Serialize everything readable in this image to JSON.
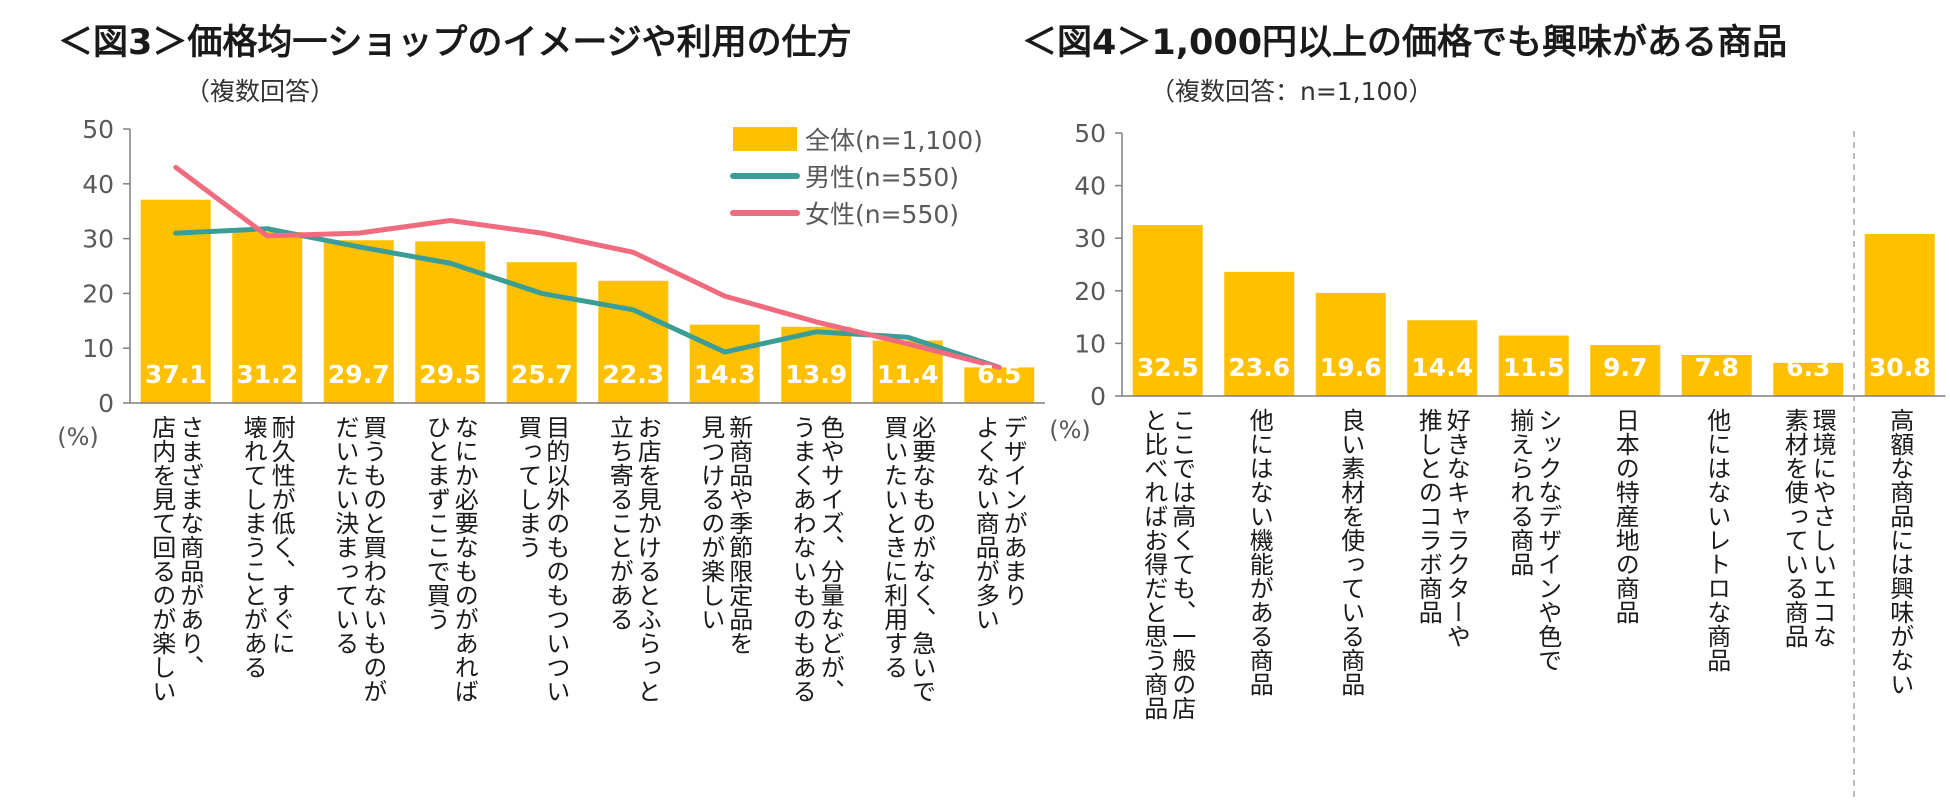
{
  "chart_data": [
    {
      "type": "bar",
      "title": "＜図3＞価格均一ショップのイメージや利用の仕方",
      "subtitle": "（複数回答）",
      "unit_label": "(%)",
      "ylim": [
        0,
        50
      ],
      "yticks": [
        0,
        10,
        20,
        30,
        40,
        50
      ],
      "categories": [
        [
          "さまざまな商品があり、",
          "店内を見て回るのが楽しい"
        ],
        [
          "耐久性が低く、すぐに",
          "壊れてしまうことがある"
        ],
        [
          "買うものと買わないものが",
          "だいたい決まっている"
        ],
        [
          "なにか必要なものがあれば",
          "ひとまずここで買う"
        ],
        [
          "目的以外のものもついつい",
          "買ってしまう"
        ],
        [
          "お店を見かけるとふらっと",
          "立ち寄ることがある"
        ],
        [
          "新商品や季節限定品を",
          "見つけるのが楽しい"
        ],
        [
          "色やサイズ、分量などが、",
          "うまくあわないものもある"
        ],
        [
          "必要なものがなく、急いで",
          "買いたいときに利用する"
        ],
        [
          "デザインがあまり",
          "よくない商品が多い"
        ]
      ],
      "series": [
        {
          "name": "全体(n=1,100)",
          "kind": "bar",
          "color": "#FFC000",
          "values": [
            37.1,
            31.2,
            29.7,
            29.5,
            25.7,
            22.3,
            14.3,
            13.9,
            11.4,
            6.5
          ],
          "labels": [
            "37.1",
            "31.2",
            "29.7",
            "29.5",
            "25.7",
            "22.3",
            "14.3",
            "13.9",
            "11.4",
            "6.5"
          ]
        },
        {
          "name": "男性(n=550)",
          "kind": "line",
          "color": "#3A9E97",
          "values": [
            31.0,
            31.8,
            28.5,
            25.5,
            20.0,
            17.0,
            9.3,
            13.0,
            12.0,
            6.5
          ]
        },
        {
          "name": "女性(n=550)",
          "kind": "line",
          "color": "#F06B7E",
          "values": [
            43.0,
            30.5,
            31.0,
            33.3,
            31.0,
            27.5,
            19.5,
            14.8,
            10.8,
            6.5
          ]
        }
      ]
    },
    {
      "type": "bar",
      "title": "＜図4＞1,000円以上の価格でも興味がある商品",
      "subtitle": "（複数回答：n=1,100）",
      "unit_label": "(%)",
      "ylim": [
        0,
        50
      ],
      "yticks": [
        0,
        10,
        20,
        30,
        40,
        50
      ],
      "categories": [
        [
          "ここでは高くても、一般の店",
          "と比べればお得だと思う商品"
        ],
        [
          "他にはない機能がある商品"
        ],
        [
          "良い素材を使っている商品"
        ],
        [
          "好きなキャラクターや",
          "推しとのコラボ商品"
        ],
        [
          "シックなデザインや色で",
          "揃えられる商品"
        ],
        [
          "日本の特産地の商品"
        ],
        [
          "他にはないレトロな商品"
        ],
        [
          "環境にやさしいエコな",
          "素材を使っている商品"
        ],
        [
          "高額な商品には興味がない"
        ]
      ],
      "series": [
        {
          "name": "全体(n=1,100)",
          "kind": "bar",
          "color": "#FFC000",
          "values": [
            32.5,
            23.6,
            19.6,
            14.4,
            11.5,
            9.7,
            7.8,
            6.3,
            30.8
          ],
          "labels": [
            "32.5",
            "23.6",
            "19.6",
            "14.4",
            "11.5",
            "9.7",
            "7.8",
            "6.3",
            "30.8"
          ]
        }
      ],
      "separator_before_index": 8
    }
  ]
}
